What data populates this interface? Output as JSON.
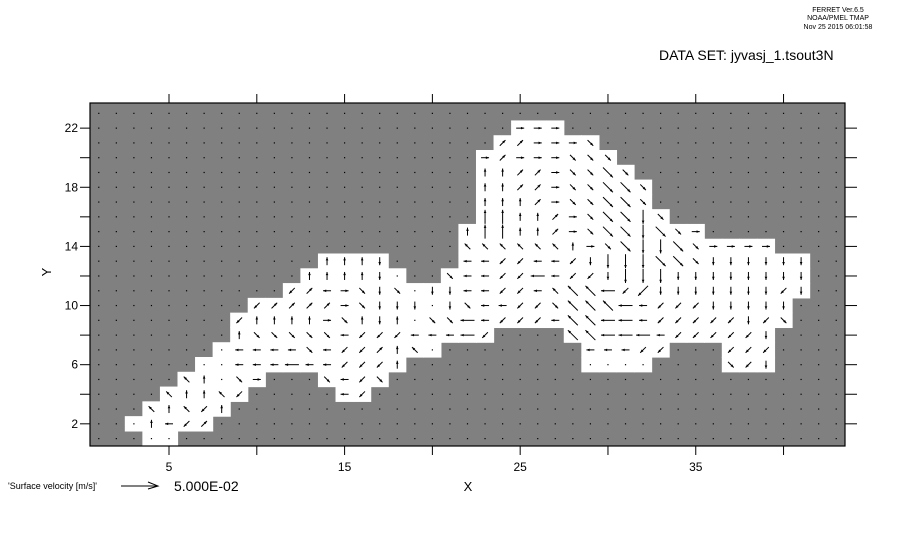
{
  "header": {
    "program": "FERRET  Ver.6.5",
    "org": "NOAA/PMEL  TMAP",
    "timestamp": "Nov 25 2015 06:01:58",
    "dataset": "DATA SET: jyvasj_1.tsout3N"
  },
  "colors": {
    "land": "#808080",
    "water": "#ffffff",
    "arrow": "#000000"
  },
  "chart_data": {
    "type": "vector",
    "xlabel": "X",
    "ylabel": "Y",
    "xlim": [
      0.5,
      43.5
    ],
    "ylim": [
      0.5,
      23.7
    ],
    "x_ticks": [
      5,
      10,
      15,
      20,
      25,
      30,
      35,
      40
    ],
    "x_tick_labels": [
      "5",
      "",
      "15",
      "",
      "25",
      "",
      "35",
      ""
    ],
    "y_ticks": [
      2,
      4,
      6,
      8,
      10,
      12,
      14,
      16,
      18,
      20,
      22
    ],
    "y_tick_labels": [
      "2",
      "",
      "6",
      "",
      "10",
      "",
      "14",
      "",
      "18",
      "",
      "22"
    ],
    "grid_x": [
      1,
      43
    ],
    "grid_y": [
      1,
      23
    ],
    "reference_vector": {
      "label": "'Surface velocity [m/s]'",
      "value_text": "5.000E-02",
      "value": 0.05
    },
    "rows": [
      {
        "y": 22,
        "segs": [
          [
            25,
            "111"
          ]
        ]
      },
      {
        "y": 21,
        "segs": [
          [
            24,
            "221118"
          ]
        ]
      },
      {
        "y": 20,
        "segs": [
          [
            23,
            "12111888"
          ]
        ]
      },
      {
        "y": 19,
        "segs": [
          [
            23,
            "3322188H8"
          ]
        ]
      },
      {
        "y": 18,
        "segs": [
          [
            23,
            "3322188HH8"
          ]
        ]
      },
      {
        "y": 17,
        "segs": [
          [
            23,
            "3332188HH8"
          ]
        ]
      },
      {
        "y": 16,
        "segs": [
          [
            23,
            "CC33218HHG8"
          ]
        ]
      },
      {
        "y": 15,
        "segs": [
          [
            22,
            "3CC33218HHGH81"
          ]
        ]
      },
      {
        "y": 14,
        "segs": [
          [
            22,
            "444444318HGGH81111"
          ]
        ]
      },
      {
        "y": 13,
        "segs": [
          [
            14,
            "3337"
          ],
          [
            22,
            "55665567GGGHH8777777"
          ]
        ]
      },
      {
        "y": 12,
        "segs": [
          [
            13,
            "333370"
          ],
          [
            21,
            "85566E5667GGG77777777"
          ]
        ]
      },
      {
        "y": 11,
        "segs": [
          [
            12,
            "6251878077556654DDE6F777777767"
          ]
        ]
      },
      {
        "y": 10,
        "segs": [
          [
            10,
            "62222187770785566 8DDDE566677777"
          ]
        ]
      },
      {
        "y": 9,
        "segs": [
          [
            9,
            "6333318373088E56665DDEE566666768"
          ]
        ]
      },
      {
        "y": 8,
        "segs": [
          [
            9,
            "3888885666555E6"
          ],
          [
            28,
            "DDEEE5666667"
          ]
        ]
      },
      {
        "y": 7,
        "segs": [
          [
            8,
            "0555585662340"
          ],
          [
            29,
            "55566"
          ],
          [
            37,
            "666"
          ]
        ]
      },
      {
        "y": 6,
        "segs": [
          [
            7,
            "00555E556663"
          ],
          [
            29,
            "0000"
          ],
          [
            37,
            "867"
          ]
        ]
      },
      {
        "y": 5,
        "segs": [
          [
            6,
            "43081"
          ],
          [
            14,
            "8568"
          ]
        ]
      },
      {
        "y": 4,
        "segs": [
          [
            5,
            "43346"
          ],
          [
            15,
            "56"
          ]
        ]
      },
      {
        "y": 3,
        "segs": [
          [
            4,
            "43463"
          ]
        ]
      },
      {
        "y": 2,
        "segs": [
          [
            3,
            "03562"
          ]
        ]
      },
      {
        "y": 1,
        "segs": [
          [
            4,
            "00"
          ]
        ]
      }
    ]
  }
}
